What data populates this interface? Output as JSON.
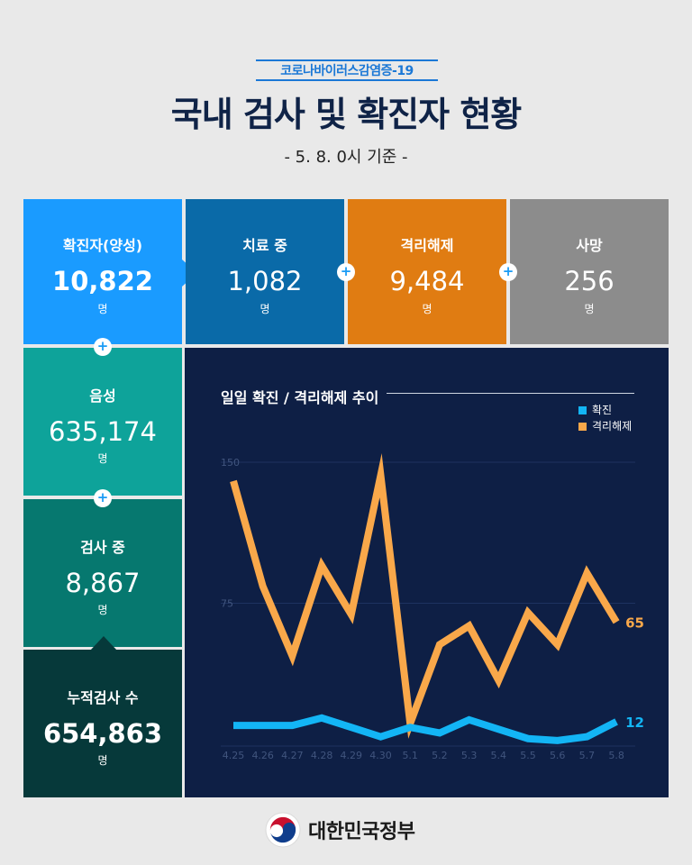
{
  "header": {
    "subtitle": "코로나바이러스감염증-19",
    "title": "국내 검사 및 확진자 현황",
    "date": "- 5. 8. 0시 기준 -"
  },
  "stats": {
    "confirmed": {
      "label": "확진자(양성)",
      "value": "10,822",
      "unit": "명",
      "color": "#1a9bff"
    },
    "treatment": {
      "label": "치료 중",
      "value": "1,082",
      "unit": "명",
      "color": "#0a6aa8"
    },
    "released": {
      "label": "격리해제",
      "value": "9,484",
      "unit": "명",
      "color": "#e07c12"
    },
    "deaths": {
      "label": "사망",
      "value": "256",
      "unit": "명",
      "color": "#8c8c8c"
    },
    "negative": {
      "label": "음성",
      "value": "635,174",
      "unit": "명",
      "color": "#0ea39a"
    },
    "testing": {
      "label": "검사 중",
      "value": "8,867",
      "unit": "명",
      "color": "#06786f"
    },
    "total": {
      "label": "누적검사 수",
      "value": "654,863",
      "unit": "명",
      "color": "#06393a"
    }
  },
  "plus_symbol": "+",
  "chart_data": {
    "type": "line",
    "title": "일일 확진 / 격리해제 추이",
    "categories": [
      "4.25",
      "4.26",
      "4.27",
      "4.28",
      "4.29",
      "4.30",
      "5.1",
      "5.2",
      "5.3",
      "5.4",
      "5.5",
      "5.6",
      "5.7",
      "5.8"
    ],
    "series": [
      {
        "name": "확진",
        "color": "#13b5f5",
        "values": [
          10,
          10,
          10,
          14,
          9,
          4,
          9,
          6,
          13,
          8,
          3,
          2,
          4,
          12
        ]
      },
      {
        "name": "격리해제",
        "color": "#f9a84a",
        "values": [
          140,
          84,
          47,
          95,
          69,
          143,
          11,
          53,
          63,
          34,
          70,
          53,
          91,
          65
        ]
      }
    ],
    "yticks": [
      "150",
      "75"
    ],
    "ylim": [
      0,
      150
    ],
    "end_labels": [
      "12",
      "65"
    ],
    "legend_position": "top-right",
    "grid": true
  },
  "footer": {
    "org": "대한민국정부",
    "emblem_icon": "taegeuk-emblem-icon"
  }
}
